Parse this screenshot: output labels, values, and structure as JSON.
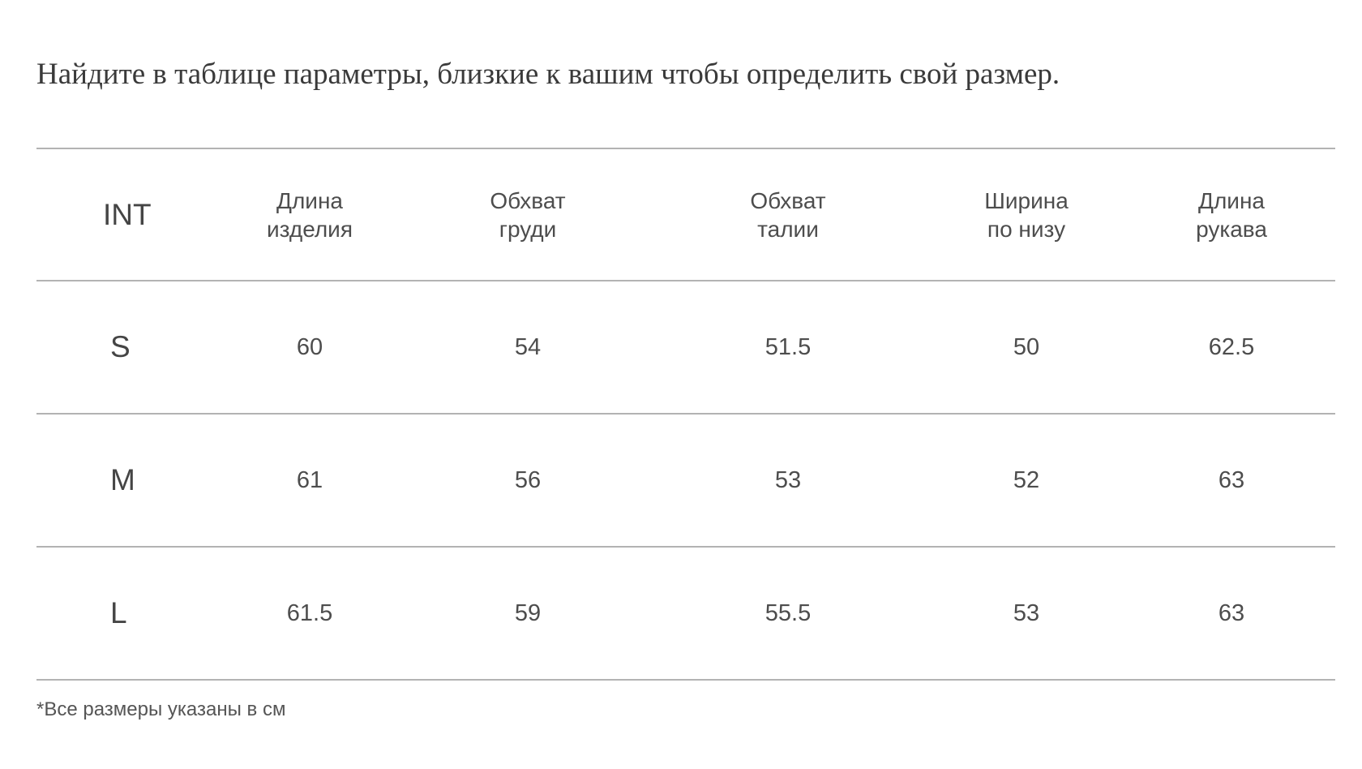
{
  "intro_text": "Найдите в таблице параметры, близкие к вашим чтобы определить свой размер.",
  "table": {
    "size_header": "INT",
    "columns": [
      {
        "line1": "Длина",
        "line2": "изделия"
      },
      {
        "line1": "Обхват",
        "line2": "груди"
      },
      {
        "line1": "Обхват",
        "line2": "талии"
      },
      {
        "line1": "Ширина",
        "line2": "по низу"
      },
      {
        "line1": "Длина",
        "line2": "рукава"
      }
    ],
    "rows": [
      {
        "size": "S",
        "values": [
          "60",
          "54",
          "51.5",
          "50",
          "62.5"
        ]
      },
      {
        "size": "M",
        "values": [
          "61",
          "56",
          "53",
          "52",
          "63"
        ]
      },
      {
        "size": "L",
        "values": [
          "61.5",
          "59",
          "55.5",
          "53",
          "63"
        ]
      }
    ]
  },
  "footnote": "*Все размеры указаны в см",
  "colors": {
    "text": "#4a4a4a",
    "divider": "#b3b3b3",
    "background": "#ffffff"
  }
}
